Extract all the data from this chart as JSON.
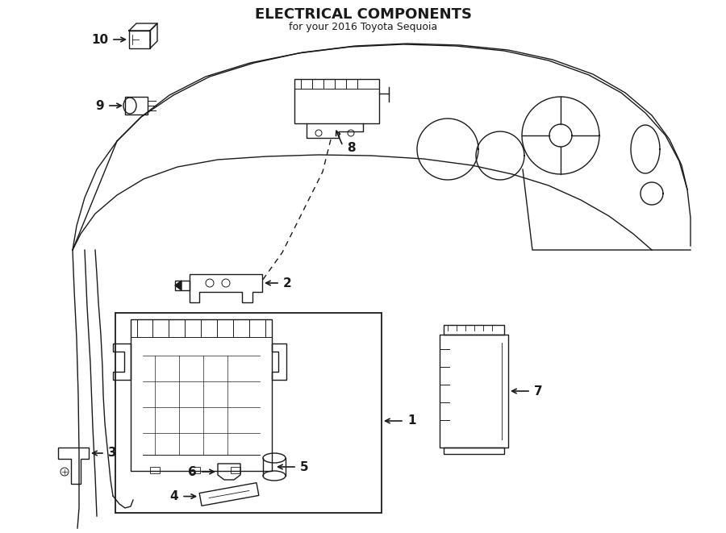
{
  "title": "ELECTRICAL COMPONENTS",
  "subtitle": "for your 2016 Toyota Sequoia",
  "bg_color": "#ffffff",
  "line_color": "#1a1a1a",
  "text_color": "#1a1a1a",
  "fig_width": 9.0,
  "fig_height": 6.61,
  "dpi": 100
}
